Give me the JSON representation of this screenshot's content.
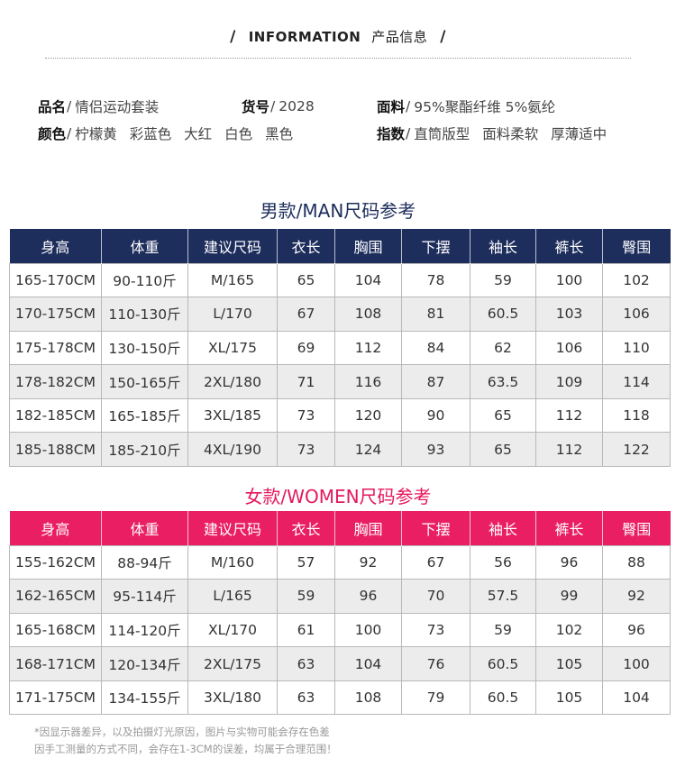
{
  "header": {
    "slash": "/",
    "en": "INFORMATION",
    "cn": "产品信息"
  },
  "info": {
    "name_key": "品名",
    "name_val": "情侣运动套装",
    "code_key": "货号",
    "code_val": "2028",
    "fabric_key": "面料",
    "fabric_val": "95%聚酯纤维 5%氨纶",
    "color_key": "颜色",
    "colors": [
      "柠檬黄",
      "彩蓝色",
      "大红",
      "白色",
      "黑色"
    ],
    "index_key": "指数",
    "indexes": [
      "直筒版型",
      "面料柔软",
      "厚薄适中"
    ],
    "sep": "/"
  },
  "man": {
    "title": "男款/MAN尺码参考",
    "headers": [
      "身高",
      "体重",
      "建议尺码",
      "衣长",
      "胸围",
      "下摆",
      "袖长",
      "裤长",
      "臀围"
    ],
    "rows": [
      [
        "165-170CM",
        "90-110斤",
        "M/165",
        "65",
        "104",
        "78",
        "59",
        "100",
        "102"
      ],
      [
        "170-175CM",
        "110-130斤",
        "L/170",
        "67",
        "108",
        "81",
        "60.5",
        "103",
        "106"
      ],
      [
        "175-178CM",
        "130-150斤",
        "XL/175",
        "69",
        "112",
        "84",
        "62",
        "106",
        "110"
      ],
      [
        "178-182CM",
        "150-165斤",
        "2XL/180",
        "71",
        "116",
        "87",
        "63.5",
        "109",
        "114"
      ],
      [
        "182-185CM",
        "165-185斤",
        "3XL/185",
        "73",
        "120",
        "90",
        "65",
        "112",
        "118"
      ],
      [
        "185-188CM",
        "185-210斤",
        "4XL/190",
        "73",
        "124",
        "93",
        "65",
        "112",
        "122"
      ]
    ]
  },
  "women": {
    "title": "女款/WOMEN尺码参考",
    "headers": [
      "身高",
      "体重",
      "建议尺码",
      "衣长",
      "胸围",
      "下摆",
      "袖长",
      "裤长",
      "臀围"
    ],
    "rows": [
      [
        "155-162CM",
        "88-94斤",
        "M/160",
        "57",
        "92",
        "67",
        "56",
        "96",
        "88"
      ],
      [
        "162-165CM",
        "95-114斤",
        "L/165",
        "59",
        "96",
        "70",
        "57.5",
        "99",
        "92"
      ],
      [
        "165-168CM",
        "114-120斤",
        "XL/170",
        "61",
        "100",
        "73",
        "59",
        "102",
        "96"
      ],
      [
        "168-171CM",
        "120-134斤",
        "2XL/175",
        "63",
        "104",
        "76",
        "60.5",
        "105",
        "100"
      ],
      [
        "171-175CM",
        "134-155斤",
        "3XL/180",
        "63",
        "108",
        "79",
        "60.5",
        "105",
        "104"
      ]
    ]
  },
  "note": {
    "line1": "*因显示器差异，以及拍摄灯光原因，图片与实物可能会存在色差",
    "line2": "因手工测量的方式不同，会存在1-3CM的误差，均属于合理范围！"
  },
  "colors": {
    "man_header": "#1d2d5c",
    "women_header": "#e91e63",
    "women_title": "#e4185b",
    "alt_row": "#ececec"
  }
}
